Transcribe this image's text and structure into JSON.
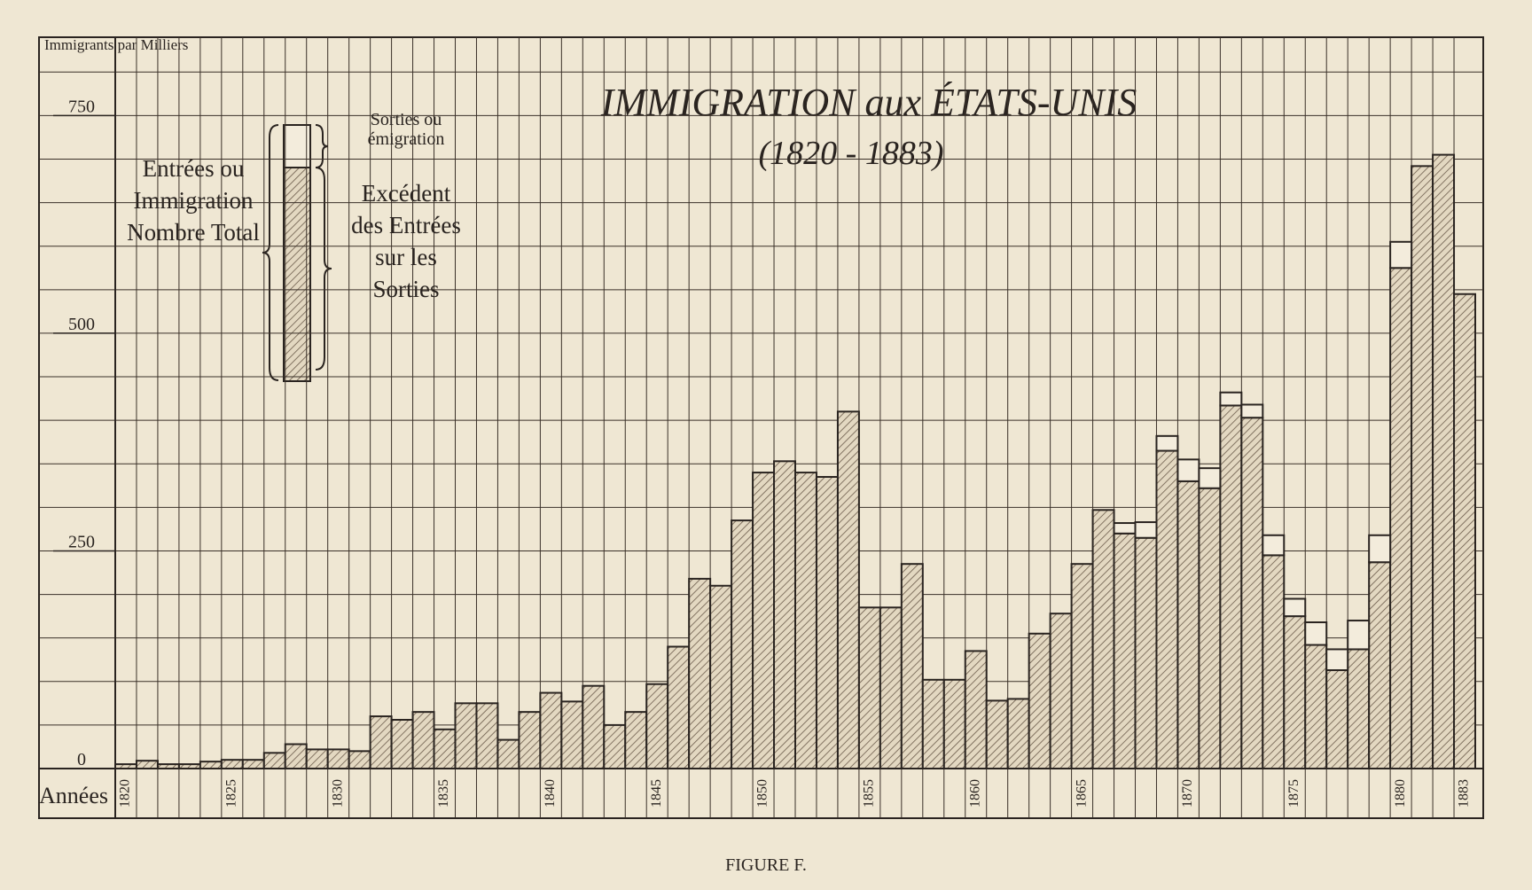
{
  "chart_data": {
    "type": "stacked_bar",
    "title": "IMMIGRATION aux ÉTATS-UNIS",
    "subtitle": "(1820 - 1883)",
    "y_label": "Immigrants par Milliers",
    "x_label": "Années",
    "total_label": "Entrées ou Immigration Nombre Total",
    "caption": "FIGURE F.",
    "categories": [
      "1820",
      null,
      null,
      null,
      null,
      "1825",
      null,
      null,
      null,
      null,
      "1830",
      null,
      null,
      null,
      null,
      "1835",
      null,
      null,
      null,
      null,
      "1840",
      null,
      null,
      null,
      null,
      "1845",
      null,
      null,
      null,
      null,
      "1850",
      null,
      null,
      null,
      null,
      "1855",
      null,
      null,
      null,
      null,
      "1860",
      null,
      null,
      null,
      null,
      "1865",
      null,
      null,
      null,
      null,
      "1870",
      null,
      null,
      null,
      null,
      "1875",
      null,
      null,
      null,
      null,
      "1880",
      null,
      null,
      "1883"
    ],
    "series": [
      {
        "name": "Excédent des Entrées sur les Sorties",
        "color": "#7a6a58",
        "values": [
          5,
          9,
          5,
          5,
          8,
          10,
          10,
          18,
          28,
          22,
          22,
          20,
          60,
          56,
          65,
          45,
          75,
          75,
          33,
          65,
          87,
          77,
          95,
          50,
          65,
          97,
          140,
          218,
          210,
          285,
          340,
          353,
          340,
          335,
          410,
          185,
          185,
          235,
          102,
          102,
          135,
          78,
          80,
          155,
          178,
          235,
          297,
          270,
          265,
          365,
          330,
          322,
          417,
          403,
          245,
          175,
          142,
          113,
          137,
          237,
          575,
          692,
          705,
          545
        ]
      },
      {
        "name": "Sorties ou émigration",
        "color": "#f3ecdc",
        "values": [
          null,
          null,
          null,
          null,
          null,
          null,
          null,
          null,
          null,
          null,
          null,
          null,
          null,
          null,
          null,
          null,
          null,
          null,
          null,
          null,
          null,
          null,
          null,
          null,
          null,
          null,
          null,
          null,
          null,
          null,
          null,
          null,
          null,
          null,
          null,
          null,
          null,
          null,
          null,
          null,
          null,
          null,
          null,
          null,
          null,
          null,
          null,
          12,
          18,
          17,
          25,
          23,
          15,
          15,
          23,
          20,
          26,
          24,
          33,
          31,
          30,
          null,
          null,
          null
        ]
      }
    ],
    "ylim": [
      0,
      840
    ],
    "yticks": [
      0,
      250,
      500,
      750
    ],
    "grid_yticks": [
      50,
      100,
      150,
      200,
      250,
      300,
      350,
      400,
      450,
      500,
      550,
      600,
      650,
      700,
      750,
      800
    ],
    "grid": true
  }
}
